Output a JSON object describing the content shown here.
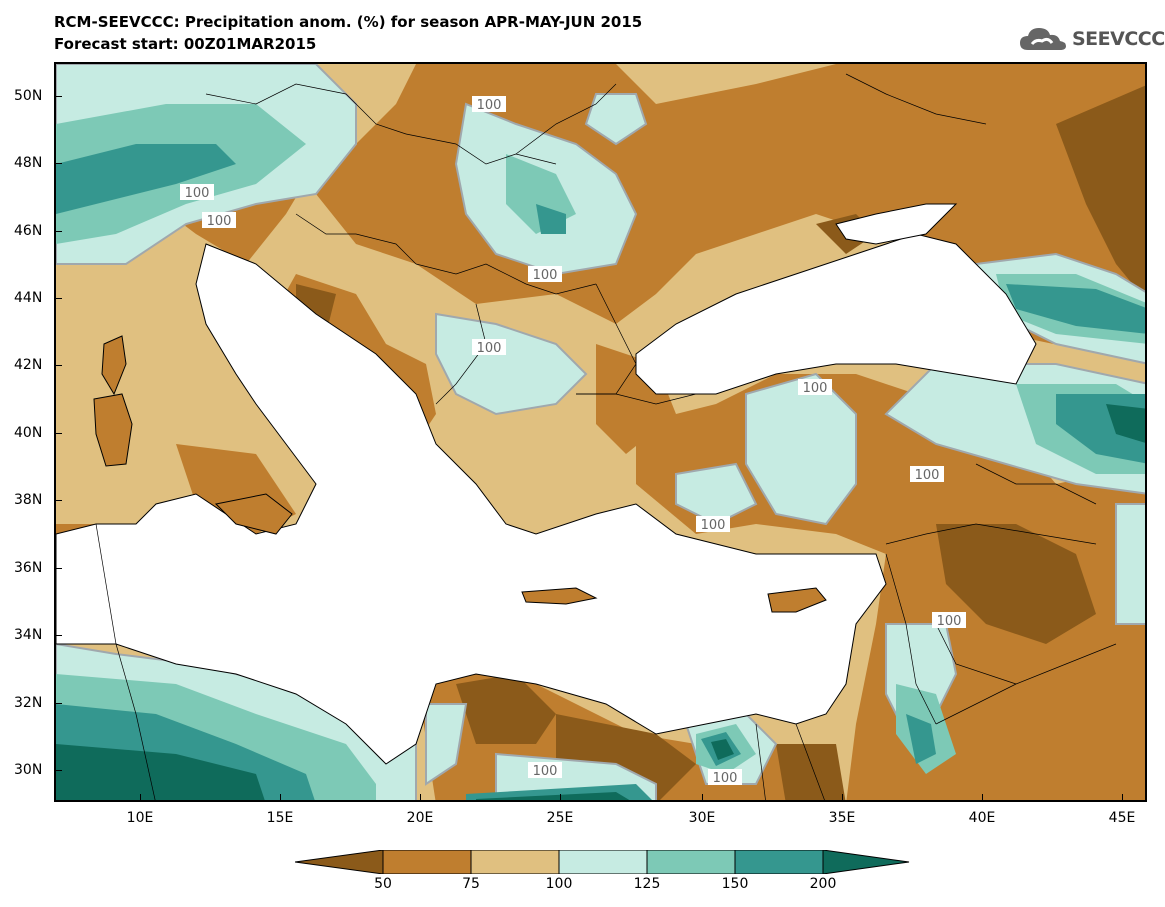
{
  "title": {
    "line1": "RCM-SEEVCCC: Precipitation anom. (%) for season APR-MAY-JUN 2015",
    "line2": "Forecast start: 00Z01MAR2015"
  },
  "logo": {
    "text": "SEEVCCC",
    "icon": "cloud-icon"
  },
  "map": {
    "lat_labels": [
      "50N",
      "48N",
      "46N",
      "44N",
      "42N",
      "40N",
      "38N",
      "36N",
      "34N",
      "32N",
      "30N"
    ],
    "lon_labels": [
      "10E",
      "15E",
      "20E",
      "25E",
      "30E",
      "35E",
      "40E",
      "45E"
    ],
    "contour_label": "100",
    "colors": {
      "sea": "#ffffff",
      "lt50": "#8b5a1a",
      "50_75": "#bf7e2f",
      "75_100": "#e0c080",
      "100_125": "#c6ebe2",
      "125_150": "#7dc9b6",
      "150_200": "#35978f",
      "gt200": "#0f6b5b",
      "contour": "#a0a8ad"
    }
  },
  "colorbar": {
    "labels": [
      "50",
      "75",
      "100",
      "125",
      "150",
      "200"
    ]
  }
}
